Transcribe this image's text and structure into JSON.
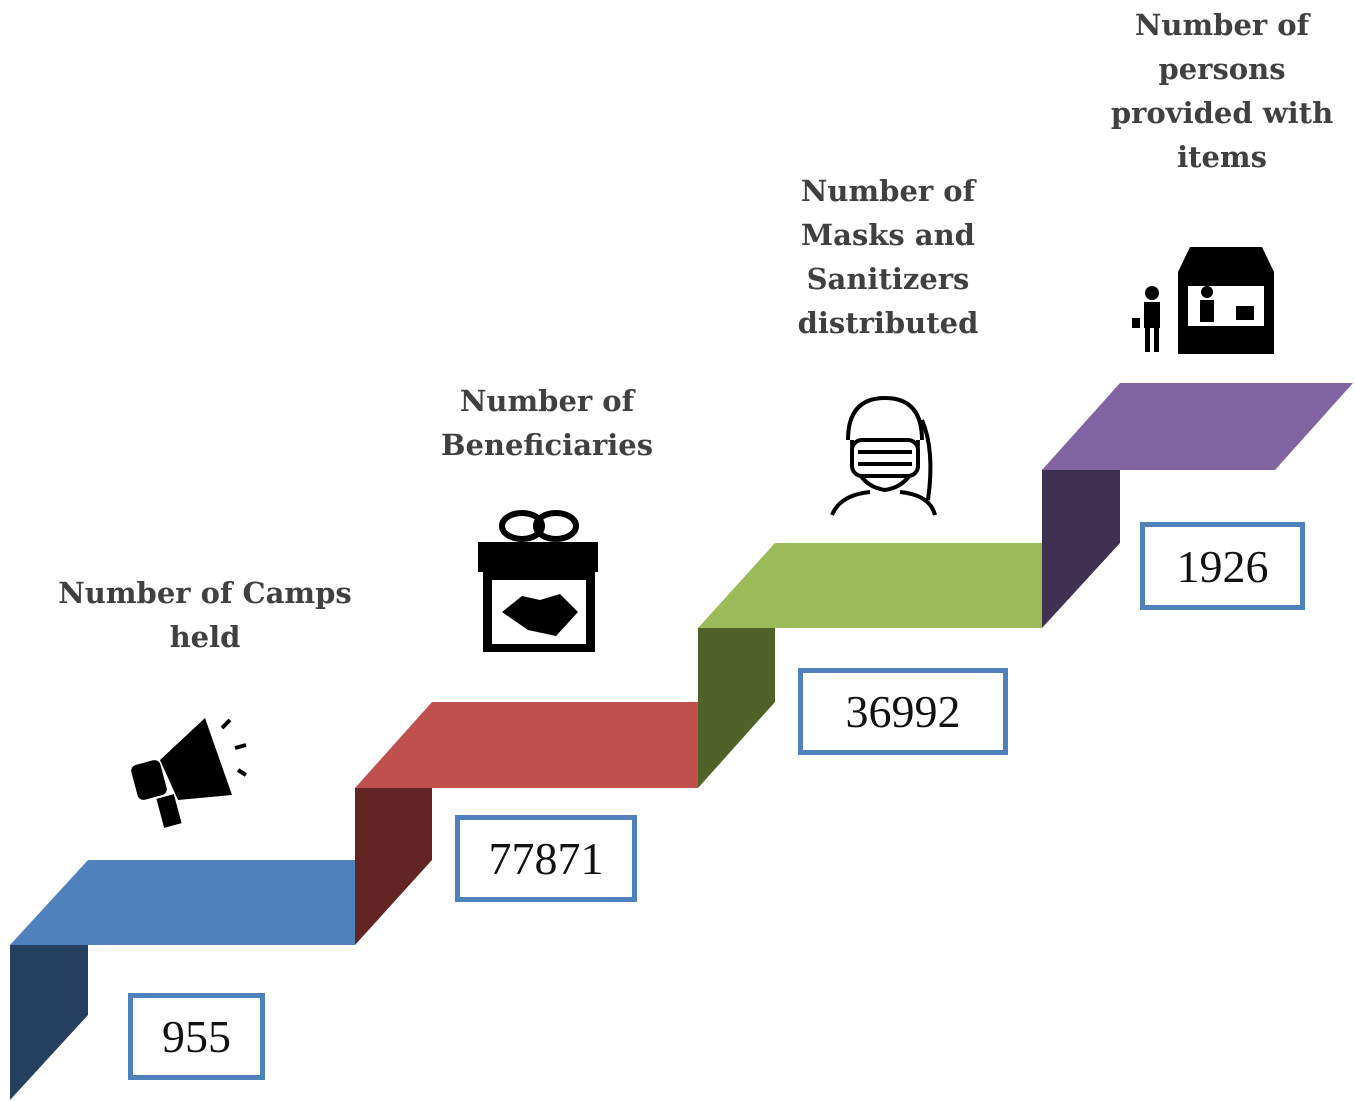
{
  "steps": [
    {
      "label": "Number of Camps held",
      "value": 955
    },
    {
      "label": "Number of Beneficiaries",
      "value": 77871
    },
    {
      "label": "Number of Masks and Sanitizers distributed",
      "value": 36992
    },
    {
      "label": "Number of persons provided with items",
      "value": 1926
    }
  ]
}
